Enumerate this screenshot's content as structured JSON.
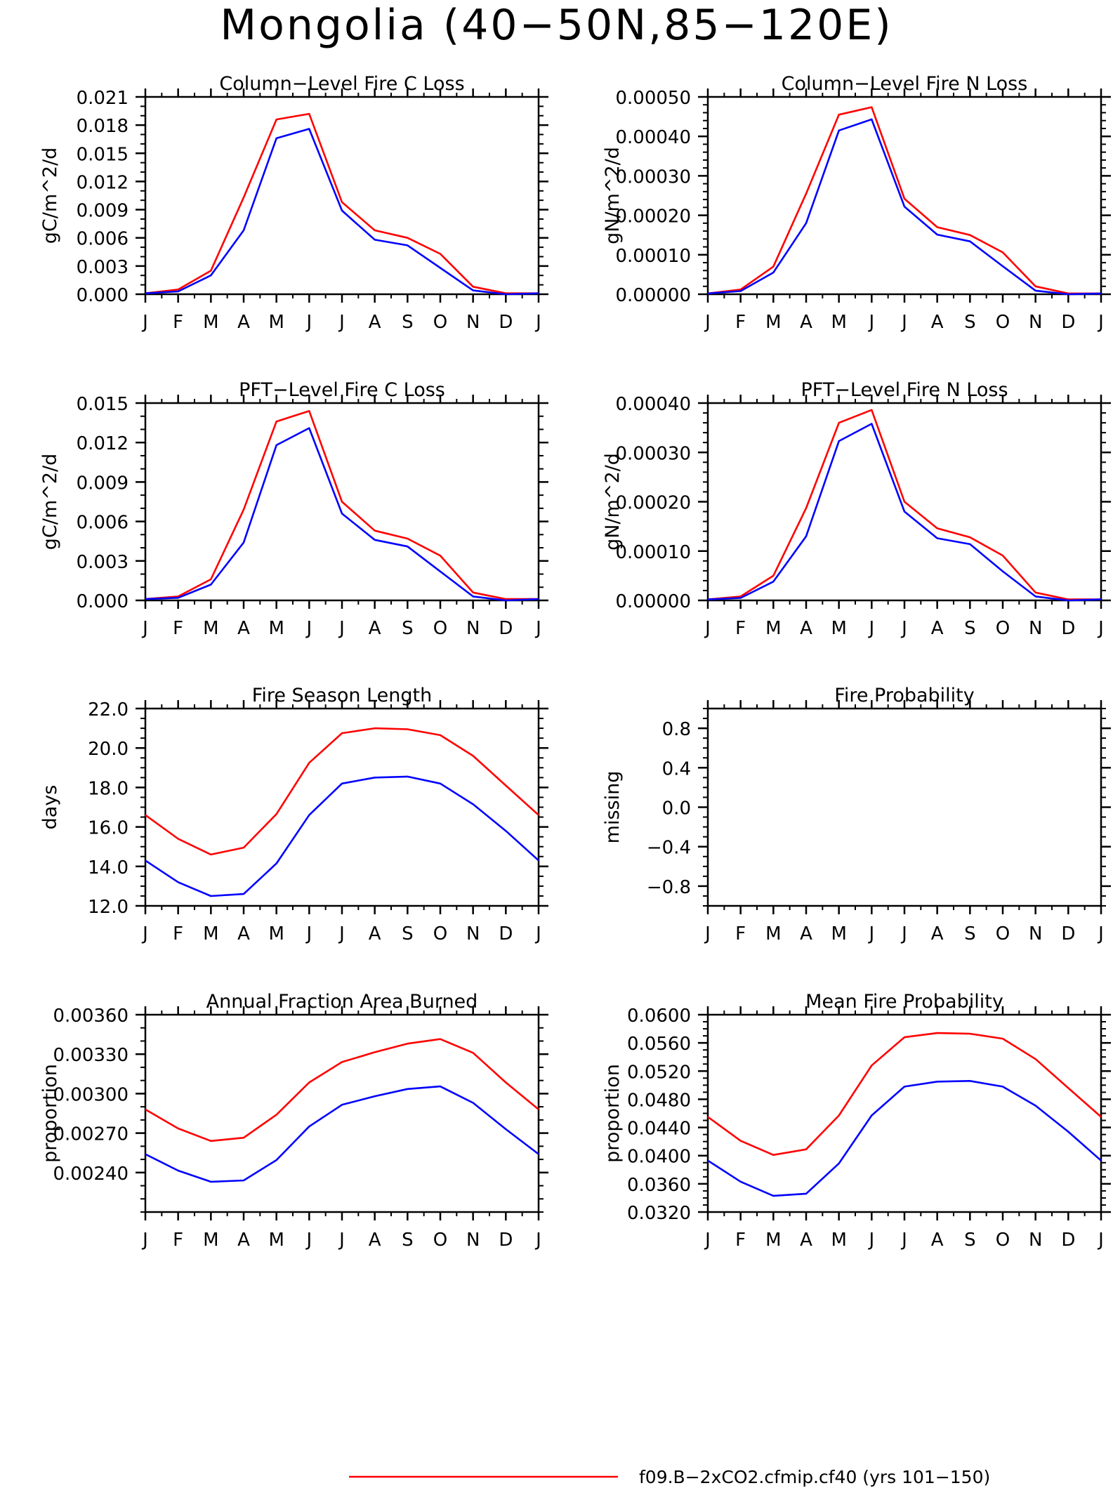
{
  "page": {
    "title": "Mongolia (40−50N,85−120E)"
  },
  "legend": {
    "label": "f09.B−2xCO2.cfmip.cf40 (yrs 101−150)",
    "color": "#ff0000"
  },
  "colors": {
    "series_a": "#ff0000",
    "series_b": "#0000ff"
  },
  "chart_data": [
    {
      "type": "line",
      "title": "Column−Level Fire C Loss",
      "ylabel": "gC/m^2/d",
      "xlabel": "",
      "x_ticks": [
        "J",
        "F",
        "M",
        "A",
        "M",
        "J",
        "J",
        "A",
        "S",
        "O",
        "N",
        "D",
        "J"
      ],
      "ylim": [
        0,
        0.021
      ],
      "y_ticks": [
        "0.000",
        "0.003",
        "0.006",
        "0.009",
        "0.012",
        "0.015",
        "0.018",
        "0.021"
      ],
      "y_tick_values": [
        0,
        0.003,
        0.006,
        0.009,
        0.012,
        0.015,
        0.018,
        0.021
      ],
      "minor_step": 0.001,
      "series": [
        {
          "color": "#ff0000",
          "values": [
            0.0001,
            0.0005,
            0.0025,
            0.0103,
            0.0186,
            0.0192,
            0.0098,
            0.0068,
            0.006,
            0.0043,
            0.0008,
            0.0001,
            0.0001
          ]
        },
        {
          "color": "#0000ff",
          "values": [
            0.0001,
            0.0003,
            0.002,
            0.0068,
            0.0166,
            0.0176,
            0.0089,
            0.0058,
            0.0052,
            0.0028,
            0.0004,
            0.0,
            0.0001
          ]
        }
      ]
    },
    {
      "type": "line",
      "title": "Column−Level Fire N Loss",
      "ylabel": "gN/m^2/d",
      "xlabel": "",
      "x_ticks": [
        "J",
        "F",
        "M",
        "A",
        "M",
        "J",
        "J",
        "A",
        "S",
        "O",
        "N",
        "D",
        "J"
      ],
      "ylim": [
        0,
        0.0005
      ],
      "y_ticks": [
        "0.00000",
        "0.00010",
        "0.00020",
        "0.00030",
        "0.00040",
        "0.00050"
      ],
      "y_tick_values": [
        0,
        0.0001,
        0.0002,
        0.0003,
        0.0004,
        0.0005
      ],
      "minor_step": 2e-05,
      "series": [
        {
          "color": "#ff0000",
          "values": [
            2e-06,
            1.2e-05,
            7e-05,
            0.000255,
            0.000455,
            0.000474,
            0.000242,
            0.00017,
            0.00015,
            0.000106,
            2e-05,
            2e-06,
            2e-06
          ]
        },
        {
          "color": "#0000ff",
          "values": [
            2e-06,
            8e-06,
            5.5e-05,
            0.00018,
            0.000415,
            0.000443,
            0.000222,
            0.000151,
            0.000134,
            7.1e-05,
            9e-06,
            0.0,
            2e-06
          ]
        }
      ]
    },
    {
      "type": "line",
      "title": "PFT−Level Fire C Loss",
      "ylabel": "gC/m^2/d",
      "xlabel": "",
      "x_ticks": [
        "J",
        "F",
        "M",
        "A",
        "M",
        "J",
        "J",
        "A",
        "S",
        "O",
        "N",
        "D",
        "J"
      ],
      "ylim": [
        0,
        0.015
      ],
      "y_ticks": [
        "0.000",
        "0.003",
        "0.006",
        "0.009",
        "0.012",
        "0.015"
      ],
      "y_tick_values": [
        0,
        0.003,
        0.006,
        0.009,
        0.012,
        0.015
      ],
      "minor_step": 0.001,
      "series": [
        {
          "color": "#ff0000",
          "values": [
            0.0001,
            0.0003,
            0.0016,
            0.0069,
            0.0136,
            0.0144,
            0.0075,
            0.0053,
            0.0047,
            0.0034,
            0.0006,
            0.0001,
            0.0001
          ]
        },
        {
          "color": "#0000ff",
          "values": [
            0.0001,
            0.0002,
            0.0012,
            0.0044,
            0.0118,
            0.0131,
            0.0066,
            0.0046,
            0.0041,
            0.0022,
            0.0003,
            0.0,
            0.0001
          ]
        }
      ]
    },
    {
      "type": "line",
      "title": "PFT−Level Fire N Loss",
      "ylabel": "gN/m^2/d",
      "xlabel": "",
      "x_ticks": [
        "J",
        "F",
        "M",
        "A",
        "M",
        "J",
        "J",
        "A",
        "S",
        "O",
        "N",
        "D",
        "J"
      ],
      "ylim": [
        0,
        0.0004
      ],
      "y_ticks": [
        "0.00000",
        "0.00010",
        "0.00020",
        "0.00030",
        "0.00040"
      ],
      "y_tick_values": [
        0,
        0.0001,
        0.0002,
        0.0003,
        0.0004
      ],
      "minor_step": 2e-05,
      "series": [
        {
          "color": "#ff0000",
          "values": [
            2e-06,
            8e-06,
            5e-05,
            0.000187,
            0.00036,
            0.000386,
            0.0002,
            0.000146,
            0.000128,
            9.1e-05,
            1.6e-05,
            2e-06,
            2e-06
          ]
        },
        {
          "color": "#0000ff",
          "values": [
            2e-06,
            5e-06,
            3.8e-05,
            0.00013,
            0.000323,
            0.000358,
            0.00018,
            0.000126,
            0.000114,
            5.9e-05,
            8e-06,
            0.0,
            2e-06
          ]
        }
      ]
    },
    {
      "type": "line",
      "title": "Fire Season Length",
      "ylabel": "days",
      "xlabel": "",
      "x_ticks": [
        "J",
        "F",
        "M",
        "A",
        "M",
        "J",
        "J",
        "A",
        "S",
        "O",
        "N",
        "D",
        "J"
      ],
      "ylim": [
        12,
        22
      ],
      "y_ticks": [
        "12.0",
        "14.0",
        "16.0",
        "18.0",
        "20.0",
        "22.0"
      ],
      "y_tick_values": [
        12,
        14,
        16,
        18,
        20,
        22
      ],
      "minor_step": 0.5,
      "series": [
        {
          "color": "#ff0000",
          "values": [
            16.6,
            15.4,
            14.6,
            14.95,
            16.65,
            19.25,
            20.75,
            21.0,
            20.95,
            20.65,
            19.6,
            18.1,
            16.6
          ]
        },
        {
          "color": "#0000ff",
          "values": [
            14.3,
            13.2,
            12.5,
            12.6,
            14.15,
            16.6,
            18.2,
            18.5,
            18.55,
            18.2,
            17.15,
            15.8,
            14.3
          ]
        }
      ]
    },
    {
      "type": "line",
      "title": "Fire Probability",
      "ylabel": "missing",
      "xlabel": "",
      "x_ticks": [
        "J",
        "F",
        "M",
        "A",
        "M",
        "J",
        "J",
        "A",
        "S",
        "O",
        "N",
        "D",
        "J"
      ],
      "ylim": [
        -1,
        1
      ],
      "y_ticks": [
        "−0.8",
        "−0.4",
        "0.0",
        "0.4",
        "0.8"
      ],
      "y_tick_values": [
        -0.8,
        -0.4,
        0,
        0.4,
        0.8
      ],
      "minor_step": 0.1,
      "series": []
    },
    {
      "type": "line",
      "title": "Annual Fraction Area Burned",
      "ylabel": "proportion",
      "xlabel": "",
      "x_ticks": [
        "J",
        "F",
        "M",
        "A",
        "M",
        "J",
        "J",
        "A",
        "S",
        "O",
        "N",
        "D",
        "J"
      ],
      "ylim": [
        0.0021,
        0.0036
      ],
      "y_ticks": [
        "0.00240",
        "0.00270",
        "0.00300",
        "0.00330",
        "0.00360"
      ],
      "y_tick_values": [
        0.0024,
        0.0027,
        0.003,
        0.0033,
        0.0036
      ],
      "minor_step": 0.0001,
      "series": [
        {
          "color": "#ff0000",
          "values": [
            0.00288,
            0.002735,
            0.00264,
            0.002665,
            0.00284,
            0.003085,
            0.00324,
            0.003315,
            0.00338,
            0.003415,
            0.00331,
            0.003085,
            0.00288
          ]
        },
        {
          "color": "#0000ff",
          "values": [
            0.00254,
            0.002415,
            0.00233,
            0.00234,
            0.002495,
            0.00275,
            0.002915,
            0.00298,
            0.003035,
            0.003055,
            0.00293,
            0.00273,
            0.00254
          ]
        }
      ]
    },
    {
      "type": "line",
      "title": "Mean Fire Probability",
      "ylabel": "proportion",
      "xlabel": "",
      "x_ticks": [
        "J",
        "F",
        "M",
        "A",
        "M",
        "J",
        "J",
        "A",
        "S",
        "O",
        "N",
        "D",
        "J"
      ],
      "ylim": [
        0.032,
        0.06
      ],
      "y_ticks": [
        "0.0320",
        "0.0360",
        "0.0400",
        "0.0440",
        "0.0480",
        "0.0520",
        "0.0560",
        "0.0600"
      ],
      "y_tick_values": [
        0.032,
        0.036,
        0.04,
        0.044,
        0.048,
        0.052,
        0.056,
        0.06
      ],
      "minor_step": 0.001,
      "series": [
        {
          "color": "#ff0000",
          "values": [
            0.0455,
            0.0421,
            0.0401,
            0.0409,
            0.0457,
            0.0528,
            0.0568,
            0.0574,
            0.0573,
            0.0566,
            0.0537,
            0.0496,
            0.0455
          ]
        },
        {
          "color": "#0000ff",
          "values": [
            0.0393,
            0.0363,
            0.0343,
            0.0346,
            0.0389,
            0.0457,
            0.0498,
            0.0505,
            0.0506,
            0.0498,
            0.0471,
            0.0434,
            0.0393
          ]
        }
      ]
    }
  ]
}
